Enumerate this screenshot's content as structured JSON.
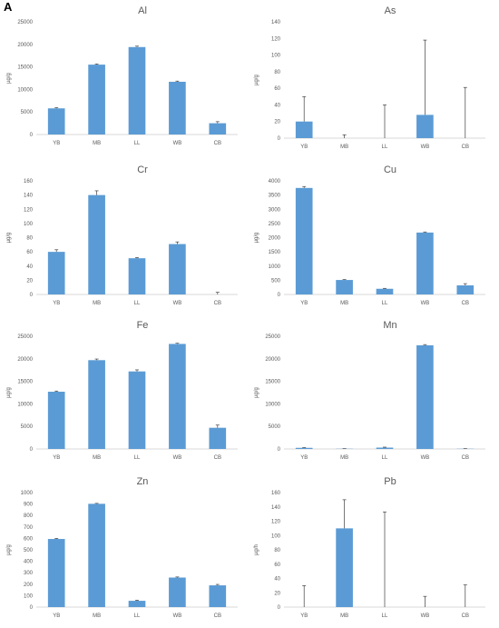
{
  "figure": {
    "panel_label": "A"
  },
  "style": {
    "bar_color": "#5b9bd5",
    "axis_color": "#d9d9d9",
    "error_color": "#404040"
  },
  "chart_data": [
    {
      "type": "bar",
      "title": "Al",
      "ylabel": "µg/g",
      "categories": [
        "YB",
        "MB",
        "LL",
        "WB",
        "CB"
      ],
      "values": [
        5800,
        15500,
        19400,
        11700,
        2500
      ],
      "errors": [
        150,
        150,
        200,
        150,
        350
      ],
      "ylim": [
        0,
        25000
      ],
      "yticks": [
        0,
        5000,
        10000,
        15000,
        20000,
        25000
      ]
    },
    {
      "type": "bar",
      "title": "As",
      "ylabel": "µg/g",
      "categories": [
        "YB",
        "MB",
        "LL",
        "WB",
        "CB"
      ],
      "values": [
        20,
        0,
        0,
        28,
        0
      ],
      "errors": [
        30,
        4,
        40,
        90,
        61
      ],
      "ylim": [
        0,
        140
      ],
      "yticks": [
        0,
        20,
        40,
        60,
        80,
        100,
        120,
        140
      ]
    },
    {
      "type": "bar",
      "title": "Cr",
      "ylabel": "µg/g",
      "categories": [
        "YB",
        "MB",
        "LL",
        "WB",
        "CB"
      ],
      "values": [
        60,
        140,
        51,
        71,
        0
      ],
      "errors": [
        3,
        6,
        1,
        3,
        3
      ],
      "ylim": [
        0,
        160
      ],
      "yticks": [
        0,
        20,
        40,
        60,
        80,
        100,
        120,
        140,
        160
      ]
    },
    {
      "type": "bar",
      "title": "Cu",
      "ylabel": "µg/g",
      "categories": [
        "YB",
        "MB",
        "LL",
        "WB",
        "CB"
      ],
      "values": [
        3750,
        510,
        200,
        2180,
        320
      ],
      "errors": [
        50,
        15,
        15,
        20,
        60
      ],
      "ylim": [
        0,
        4000
      ],
      "yticks": [
        0,
        500,
        1000,
        1500,
        2000,
        2500,
        3000,
        3500,
        4000
      ]
    },
    {
      "type": "bar",
      "title": "Fe",
      "ylabel": "µg/g",
      "categories": [
        "YB",
        "MB",
        "LL",
        "WB",
        "CB"
      ],
      "values": [
        12700,
        19700,
        17200,
        23300,
        4700
      ],
      "errors": [
        150,
        250,
        350,
        150,
        600
      ],
      "ylim": [
        0,
        25000
      ],
      "yticks": [
        0,
        5000,
        10000,
        15000,
        20000,
        25000
      ]
    },
    {
      "type": "bar",
      "title": "Mn",
      "ylabel": "µg/g",
      "categories": [
        "YB",
        "MB",
        "LL",
        "WB",
        "CB"
      ],
      "values": [
        250,
        50,
        300,
        23000,
        50
      ],
      "errors": [
        50,
        20,
        100,
        150,
        20
      ],
      "ylim": [
        0,
        25000
      ],
      "yticks": [
        0,
        5000,
        10000,
        15000,
        20000,
        25000
      ]
    },
    {
      "type": "bar",
      "title": "Zn",
      "ylabel": "µg/g",
      "categories": [
        "YB",
        "MB",
        "LL",
        "WB",
        "CB"
      ],
      "values": [
        595,
        902,
        55,
        258,
        190
      ],
      "errors": [
        5,
        4,
        5,
        5,
        8
      ],
      "ylim": [
        0,
        1000
      ],
      "yticks": [
        0,
        100,
        200,
        300,
        400,
        500,
        600,
        700,
        800,
        900,
        1000
      ]
    },
    {
      "type": "bar",
      "title": "Pb",
      "ylabel": "µg/h",
      "categories": [
        "YB",
        "MB",
        "LL",
        "WB",
        "CB"
      ],
      "values": [
        0,
        110,
        0,
        0,
        0
      ],
      "errors": [
        30,
        40,
        133,
        15,
        31
      ],
      "ylim": [
        0,
        160
      ],
      "yticks": [
        0,
        20,
        40,
        60,
        80,
        100,
        120,
        140,
        160
      ]
    }
  ]
}
